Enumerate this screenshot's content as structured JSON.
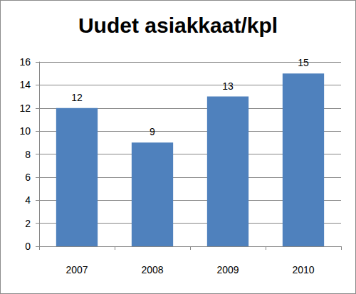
{
  "chart_data": {
    "type": "bar",
    "title": "Uudet asiakkaat/kpl",
    "categories": [
      "2007",
      "2008",
      "2009",
      "2010"
    ],
    "values": [
      12,
      9,
      13,
      15
    ],
    "color": "#4f81bd",
    "ylim": [
      0,
      16
    ],
    "yticks": [
      0,
      2,
      4,
      6,
      8,
      10,
      12,
      14,
      16
    ],
    "grid": true,
    "data_labels": true
  }
}
